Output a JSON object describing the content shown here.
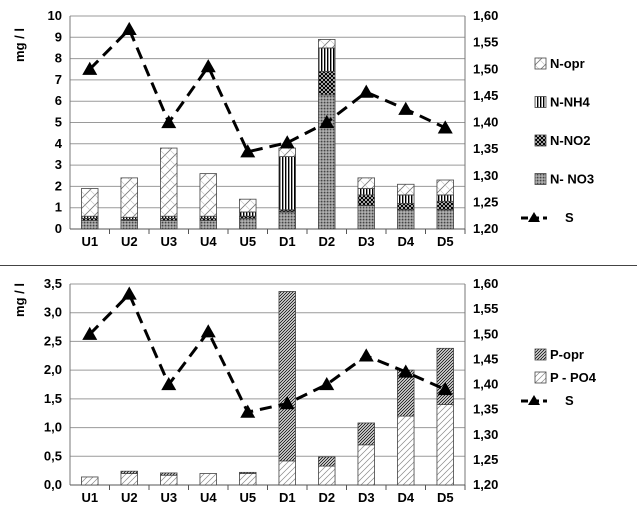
{
  "chart_data": [
    {
      "type": "bar",
      "stacked": true,
      "categories": [
        "U1",
        "U2",
        "U3",
        "U4",
        "U5",
        "D1",
        "D2",
        "D3",
        "D4",
        "D5"
      ],
      "ylabel": "mg / l",
      "ylim": [
        0,
        10
      ],
      "yticks": [
        "0",
        "1",
        "2",
        "3",
        "4",
        "5",
        "6",
        "7",
        "8",
        "9",
        "10"
      ],
      "y2lim": [
        1.2,
        1.6
      ],
      "y2ticks": [
        "1,20",
        "1,25",
        "1,30",
        "1,35",
        "1,40",
        "1,45",
        "1,50",
        "1,55",
        "1,60"
      ],
      "grid": true,
      "series": [
        {
          "name": "N- NO3",
          "pattern": "dots",
          "values": [
            0.4,
            0.4,
            0.4,
            0.4,
            0.5,
            0.8,
            6.3,
            1.1,
            0.9,
            0.9
          ]
        },
        {
          "name": "N-NO2",
          "pattern": "crosshatch",
          "values": [
            0.1,
            0.05,
            0.1,
            0.1,
            0.1,
            0.1,
            1.1,
            0.5,
            0.3,
            0.4
          ]
        },
        {
          "name": "N-NH4",
          "pattern": "vertical",
          "values": [
            0.1,
            0.1,
            0.1,
            0.1,
            0.2,
            2.5,
            1.1,
            0.3,
            0.4,
            0.3
          ]
        },
        {
          "name": "N-opr",
          "pattern": "diagonal-hollow",
          "values": [
            1.3,
            1.85,
            3.2,
            2.0,
            0.6,
            0.4,
            0.4,
            0.5,
            0.5,
            0.7
          ]
        }
      ],
      "line": {
        "name": "S",
        "axis": "secondary",
        "values": [
          1.5,
          1.575,
          1.4,
          1.505,
          1.345,
          1.362,
          1.4,
          1.457,
          1.425,
          1.39
        ]
      }
    },
    {
      "type": "bar",
      "stacked": true,
      "categories": [
        "U1",
        "U2",
        "U3",
        "U4",
        "U5",
        "D1",
        "D2",
        "D3",
        "D4",
        "D5"
      ],
      "ylabel": "mg / l",
      "ylim": [
        0,
        3.5
      ],
      "yticks": [
        "0,0",
        "0,5",
        "1,0",
        "1,5",
        "2,0",
        "2,5",
        "3,0",
        "3,5"
      ],
      "y2lim": [
        1.2,
        1.6
      ],
      "y2ticks": [
        "1,20",
        "1,25",
        "1,30",
        "1,35",
        "1,40",
        "1,45",
        "1,50",
        "1,55",
        "1,60"
      ],
      "grid": true,
      "series": [
        {
          "name": "P - PO4",
          "pattern": "sparse-hatch",
          "values": [
            0.14,
            0.2,
            0.17,
            0.2,
            0.2,
            0.42,
            0.33,
            0.7,
            1.2,
            1.4
          ]
        },
        {
          "name": "P-opr",
          "pattern": "dense-diagonal",
          "values": [
            0.0,
            0.04,
            0.04,
            0.0,
            0.02,
            2.95,
            0.16,
            0.38,
            0.8,
            0.98
          ]
        }
      ],
      "line": {
        "name": "S",
        "axis": "secondary",
        "values": [
          1.5,
          1.58,
          1.4,
          1.505,
          1.345,
          1.362,
          1.4,
          1.457,
          1.425,
          1.39
        ]
      }
    }
  ]
}
